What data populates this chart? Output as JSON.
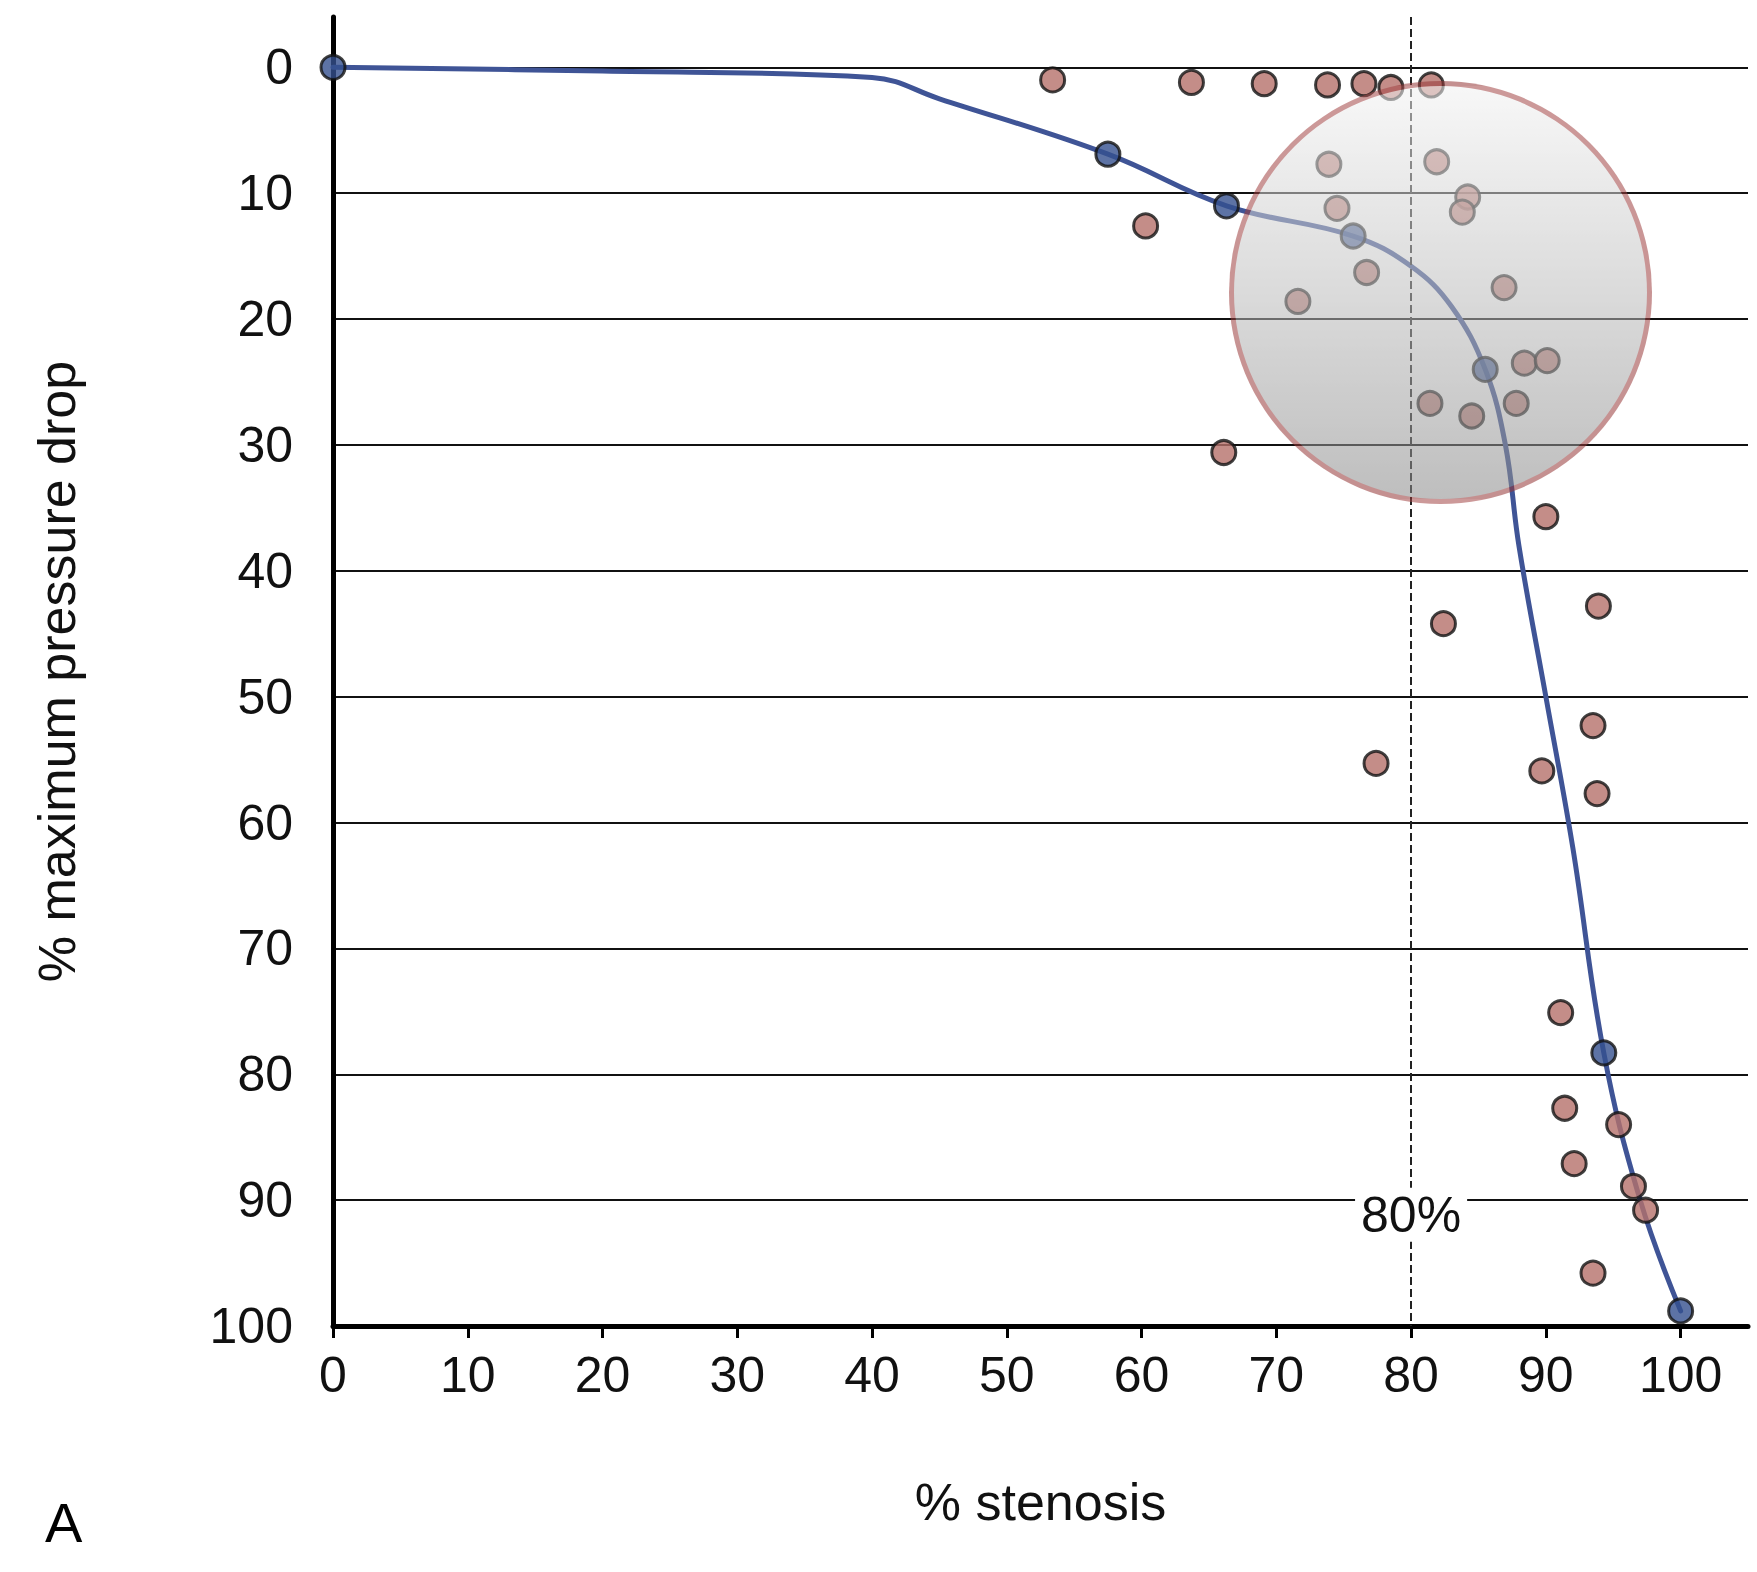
{
  "chart_data": {
    "type": "scatter",
    "xlabel": "% stenosis",
    "ylabel": "% maximum pressure drop",
    "annotations": [
      "A"
    ],
    "xlim": [
      0,
      105
    ],
    "xticks": [
      0,
      10,
      20,
      30,
      40,
      50,
      60,
      70,
      80,
      90,
      100
    ],
    "ylim": [
      100,
      -4
    ],
    "yticks": [
      0,
      10,
      20,
      30,
      40,
      50,
      60,
      70,
      80,
      90,
      100
    ],
    "grid": "y",
    "marker": "circle",
    "ref_lines": [
      {
        "axis": "x",
        "value": 80,
        "label": "80%",
        "line_style": "dashed",
        "color": "#222222"
      }
    ],
    "series": [
      {
        "type": "line",
        "color": "#3f5496",
        "marker": "none",
        "line_style": "solid",
        "x": [
          0,
          20,
          40,
          45,
          57.5,
          66.3,
          75.7,
          80,
          83,
          85.5,
          87,
          88,
          90,
          92,
          94.3,
          97,
          100
        ],
        "values": [
          0,
          0.3,
          0.8,
          2.5,
          6.9,
          11,
          13.4,
          15.8,
          19,
          24,
          30,
          38,
          50,
          62,
          78.3,
          90,
          98.8
        ]
      },
      {
        "color": "#b5706a",
        "x": [
          53.4,
          63.7,
          69.1,
          73.8,
          76.5,
          78.5,
          81.5,
          73.9,
          81.9,
          84.2,
          83.8,
          74.5,
          60.3,
          76.7,
          71.6,
          86.9,
          88.4,
          90.1,
          81.4,
          84.5,
          87.8,
          66.1,
          90.0,
          93.9,
          82.4,
          77.4,
          93.5,
          89.7,
          93.8,
          91.1,
          91.4,
          95.4,
          92.1,
          96.5,
          97.4,
          93.5
        ],
        "values": [
          1.0,
          1.2,
          1.3,
          1.4,
          1.3,
          1.6,
          1.4,
          7.7,
          7.5,
          10.3,
          11.5,
          11.2,
          12.6,
          16.3,
          18.6,
          17.5,
          23.5,
          23.3,
          26.7,
          27.7,
          26.7,
          30.6,
          35.7,
          42.8,
          44.2,
          55.3,
          52.3,
          55.9,
          57.7,
          75.1,
          82.7,
          84.0,
          87.1,
          88.9,
          90.8,
          95.8
        ]
      },
      {
        "color": "#34508f",
        "x": [
          0,
          57.5,
          66.3,
          75.7,
          85.5,
          94.3,
          100
        ],
        "values": [
          0,
          6.9,
          11.0,
          13.4,
          24.0,
          78.3,
          98.8
        ]
      }
    ]
  }
}
